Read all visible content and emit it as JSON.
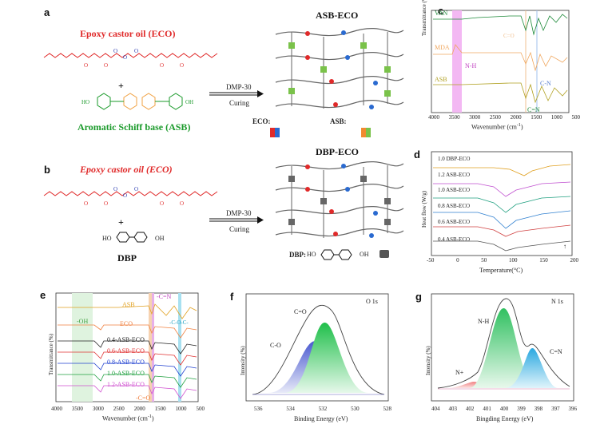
{
  "panels": {
    "a": {
      "label": "a",
      "title_eco": "Epoxy castor oil (ECO)",
      "plus": "+",
      "title_asb": "Aromatic Schiff base (ASB)",
      "arrow_top": "DMP-30",
      "arrow_bottom": "Curing",
      "product": "ASB-ECO",
      "legend_eco": "ECO:",
      "legend_asb": "ASB:"
    },
    "b": {
      "label": "b",
      "title_eco": "Epoxy castor oil (ECO)",
      "plus": "+",
      "dbp_ho": "HO",
      "dbp_oh": "OH",
      "title_dbp": "DBP",
      "arrow_top": "DMP-30",
      "arrow_bottom": "Curing",
      "product": "DBP-ECO",
      "legend_dbp": "DBP:",
      "legend_ho": "HO",
      "legend_oh": "OH"
    },
    "c": {
      "label": "c",
      "ylabel": "Transmittance (%)",
      "xlabel": "Wavenumber (cm",
      "xlabel_sup": "-1",
      "xlabel_end": ")",
      "series": [
        "VAN",
        "MDA",
        "ASB"
      ],
      "annotations": [
        "C=O",
        "N-H",
        "C-N",
        "C=N"
      ],
      "xticks": [
        "4000",
        "3500",
        "3000",
        "2500",
        "2000",
        "1500",
        "1000",
        "500"
      ]
    },
    "d": {
      "label": "d",
      "ylabel": "Heat flow (W/g)",
      "xlabel": "Temperature(°C)",
      "series": [
        "1.0 DBP-ECO",
        "1.2 ASB-ECO",
        "1.0 ASB-ECO",
        "0.8 ASB-ECO",
        "0.6 ASB-ECO",
        "0.4 ASB-ECO"
      ],
      "xticks": [
        "-50",
        "0",
        "50",
        "100",
        "150",
        "200"
      ],
      "endo": "↑"
    },
    "e": {
      "label": "e",
      "ylabel": "Transmittance (%)",
      "xlabel": "Wavenumber (cm",
      "xlabel_sup": "-1",
      "xlabel_end": ")",
      "series": [
        "ASB",
        "ECO",
        "0.4-ASB-ECO",
        "0.6-ASB-ECO",
        "0.8-ASB-ECO",
        "1.0-ASB-ECO",
        "1.2-ASB-ECO"
      ],
      "annotations": [
        "-OH",
        "-C=N",
        "-C-O-C-",
        "-C=O"
      ],
      "xticks": [
        "4000",
        "3500",
        "3000",
        "2500",
        "2000",
        "1500",
        "1000",
        "500"
      ]
    },
    "f": {
      "label": "f",
      "corner": "O 1s",
      "ylabel": "Intensity (%)",
      "xlabel": "Binding Energy (eV)",
      "peaks": [
        "C=O",
        "C-O"
      ],
      "xticks": [
        "536",
        "534",
        "532",
        "530",
        "528"
      ]
    },
    "g": {
      "label": "g",
      "corner": "N 1s",
      "ylabel": "Intensity (%)",
      "xlabel": "Bingding Energy (eV)",
      "peaks": [
        "N-H",
        "C=N",
        "N+"
      ],
      "xticks": [
        "404",
        "403",
        "402",
        "401",
        "400",
        "399",
        "398",
        "397",
        "396"
      ]
    }
  },
  "colors": {
    "red": "#e02a2a",
    "green": "#1a9a2a",
    "blue": "#2a3ab0",
    "gray": "#555555"
  }
}
